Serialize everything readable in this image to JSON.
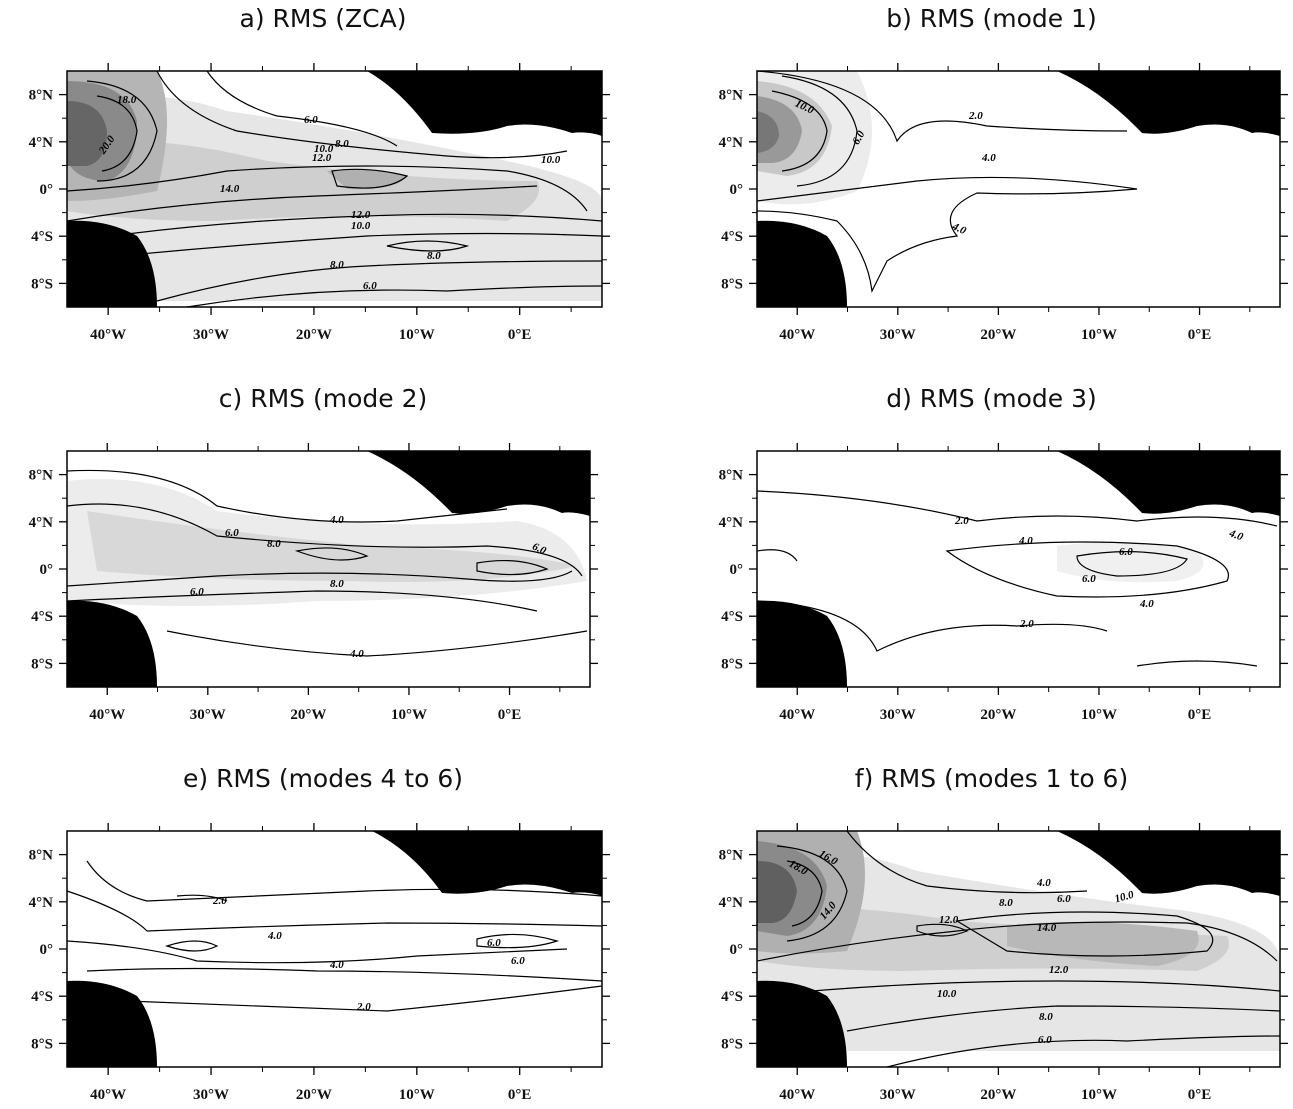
{
  "panels": [
    {
      "id": "a",
      "title": "a) RMS (ZCA)",
      "labels": [
        "18.0",
        "20.0",
        "6.0",
        "8.0",
        "10.0",
        "12.0",
        "10.0",
        "14.0",
        "12.0",
        "10.0",
        "8.0",
        "8.0",
        "6.0"
      ]
    },
    {
      "id": "b",
      "title": "b) RMS (mode 1)",
      "labels": [
        "10.0",
        "6.0",
        "2.0",
        "4.0",
        "4.0"
      ]
    },
    {
      "id": "c",
      "title": "c) RMS (mode 2)",
      "labels": [
        "6.0",
        "4.0",
        "8.0",
        "6.0",
        "8.0",
        "6.0",
        "4.0"
      ]
    },
    {
      "id": "d",
      "title": "d) RMS (mode 3)",
      "labels": [
        "2.0",
        "4.0",
        "6.0",
        "6.0",
        "4.0",
        "4.0",
        "2.0"
      ]
    },
    {
      "id": "e",
      "title": "e) RMS (modes 4 to 6)",
      "labels": [
        "2.0",
        "4.0",
        "6.0",
        "4.0",
        "6.0",
        "2.0"
      ]
    },
    {
      "id": "f",
      "title": "f) RMS (modes 1 to 6)",
      "labels": [
        "18.0",
        "16.0",
        "14.0",
        "4.0",
        "8.0",
        "6.0",
        "10.0",
        "12.0",
        "14.0",
        "12.0",
        "10.0",
        "8.0",
        "6.0"
      ]
    }
  ],
  "axes": {
    "lat_ticks": [
      "8°N",
      "4°N",
      "0°",
      "4°S",
      "8°S"
    ],
    "lon_ticks": [
      "40°W",
      "30°W",
      "20°W",
      "10°W",
      "0°E"
    ]
  },
  "colors": {
    "land": "#000000",
    "contour": "#000000",
    "shade_dark": "#5a5a5a",
    "shade_light": "#f0f0f0"
  }
}
